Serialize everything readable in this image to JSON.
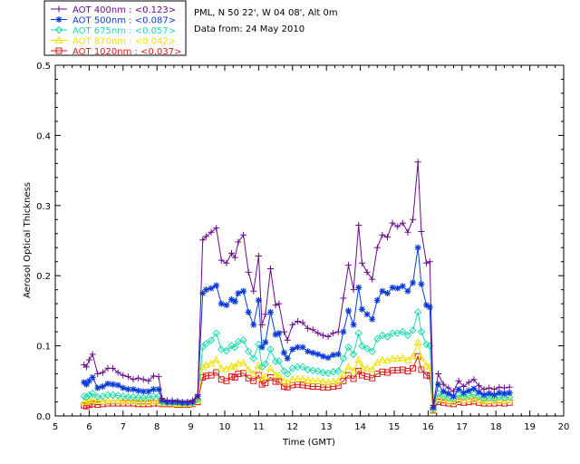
{
  "chart_data": {
    "type": "line",
    "info_lines": [
      "PML, N 50 22', W 04 08', Alt 0m",
      "Data from: 24 May 2010"
    ],
    "xlabel": "Time (GMT)",
    "ylabel": "Aerosol Optical Thickness",
    "xlim": [
      5,
      20
    ],
    "ylim": [
      0,
      0.5
    ],
    "x_ticks": [
      5,
      6,
      7,
      8,
      9,
      10,
      11,
      12,
      13,
      14,
      15,
      16,
      17,
      18,
      19,
      20
    ],
    "y_ticks": [
      "0.0",
      "0.1",
      "0.2",
      "0.3",
      "0.4",
      "0.5"
    ],
    "x_tick_values": [
      5,
      6,
      7,
      8,
      9,
      10,
      11,
      12,
      13,
      14,
      15,
      16,
      17,
      18,
      19,
      20
    ],
    "y_tick_values": [
      0,
      0.1,
      0.2,
      0.3,
      0.4,
      0.5
    ],
    "grid": false,
    "legend_position": "top-left, outside plot",
    "x": [
      5.85,
      5.92,
      6.0,
      6.1,
      6.25,
      6.4,
      6.55,
      6.7,
      6.85,
      7.0,
      7.15,
      7.3,
      7.45,
      7.6,
      7.75,
      7.9,
      8.05,
      8.15,
      8.3,
      8.45,
      8.6,
      8.75,
      8.9,
      9.05,
      9.2,
      9.35,
      9.45,
      9.6,
      9.75,
      9.9,
      10.05,
      10.2,
      10.3,
      10.4,
      10.55,
      10.7,
      10.85,
      11.0,
      11.1,
      11.2,
      11.35,
      11.5,
      11.6,
      11.75,
      11.85,
      12.0,
      12.15,
      12.3,
      12.45,
      12.6,
      12.75,
      12.9,
      13.05,
      13.2,
      13.35,
      13.5,
      13.65,
      13.8,
      13.95,
      14.05,
      14.2,
      14.35,
      14.5,
      14.65,
      14.8,
      14.95,
      15.1,
      15.25,
      15.4,
      15.55,
      15.7,
      15.8,
      15.95,
      16.05,
      16.15,
      16.3,
      16.45,
      16.6,
      16.75,
      16.9,
      17.05,
      17.2,
      17.35,
      17.5,
      17.65,
      17.8,
      17.95,
      18.1,
      18.25,
      18.4
    ],
    "series": [
      {
        "name": "AOT  400nm : <0.123>",
        "color": "#6a0a8a",
        "marker": "plus",
        "values": [
          0.073,
          0.07,
          0.08,
          0.088,
          0.06,
          0.062,
          0.068,
          0.068,
          0.062,
          0.058,
          0.056,
          0.052,
          0.054,
          0.052,
          0.05,
          0.057,
          0.056,
          0.025,
          0.022,
          0.022,
          0.021,
          0.02,
          0.02,
          0.022,
          0.03,
          0.251,
          0.256,
          0.262,
          0.268,
          0.222,
          0.218,
          0.232,
          0.226,
          0.248,
          0.258,
          0.205,
          0.178,
          0.228,
          0.13,
          0.145,
          0.21,
          0.158,
          0.16,
          0.12,
          0.108,
          0.13,
          0.135,
          0.133,
          0.125,
          0.123,
          0.118,
          0.115,
          0.113,
          0.118,
          0.12,
          0.168,
          0.215,
          0.18,
          0.272,
          0.218,
          0.205,
          0.195,
          0.24,
          0.258,
          0.255,
          0.275,
          0.27,
          0.275,
          0.262,
          0.28,
          0.362,
          0.263,
          0.218,
          0.22,
          0.015,
          0.06,
          0.045,
          0.04,
          0.035,
          0.05,
          0.042,
          0.048,
          0.052,
          0.043,
          0.038,
          0.04,
          0.038,
          0.041,
          0.04,
          0.041
        ]
      },
      {
        "name": "AOT  500nm : <0.087>",
        "color": "#0a3ad8",
        "marker": "asterisk",
        "values": [
          0.048,
          0.045,
          0.05,
          0.055,
          0.04,
          0.042,
          0.046,
          0.045,
          0.044,
          0.04,
          0.038,
          0.038,
          0.036,
          0.035,
          0.035,
          0.038,
          0.038,
          0.022,
          0.02,
          0.02,
          0.02,
          0.019,
          0.019,
          0.02,
          0.028,
          0.175,
          0.18,
          0.182,
          0.186,
          0.16,
          0.158,
          0.166,
          0.163,
          0.175,
          0.178,
          0.148,
          0.13,
          0.165,
          0.098,
          0.105,
          0.148,
          0.116,
          0.118,
          0.09,
          0.082,
          0.095,
          0.098,
          0.098,
          0.092,
          0.09,
          0.088,
          0.085,
          0.083,
          0.087,
          0.088,
          0.12,
          0.15,
          0.13,
          0.183,
          0.152,
          0.145,
          0.138,
          0.165,
          0.178,
          0.175,
          0.183,
          0.182,
          0.185,
          0.178,
          0.19,
          0.24,
          0.188,
          0.158,
          0.155,
          0.012,
          0.045,
          0.035,
          0.032,
          0.028,
          0.038,
          0.033,
          0.036,
          0.039,
          0.034,
          0.03,
          0.032,
          0.03,
          0.033,
          0.032,
          0.033
        ]
      },
      {
        "name": "AOT  675nm : <0.057>",
        "color": "#1fd8b0",
        "marker": "diamond",
        "values": [
          0.028,
          0.027,
          0.03,
          0.032,
          0.027,
          0.028,
          0.03,
          0.03,
          0.029,
          0.028,
          0.027,
          0.027,
          0.026,
          0.026,
          0.026,
          0.028,
          0.028,
          0.02,
          0.019,
          0.019,
          0.019,
          0.018,
          0.018,
          0.019,
          0.024,
          0.098,
          0.103,
          0.108,
          0.118,
          0.095,
          0.093,
          0.1,
          0.098,
          0.106,
          0.108,
          0.092,
          0.082,
          0.102,
          0.07,
          0.074,
          0.095,
          0.078,
          0.078,
          0.064,
          0.06,
          0.068,
          0.07,
          0.07,
          0.066,
          0.065,
          0.064,
          0.062,
          0.061,
          0.063,
          0.064,
          0.082,
          0.098,
          0.088,
          0.118,
          0.1,
          0.096,
          0.092,
          0.11,
          0.115,
          0.113,
          0.118,
          0.118,
          0.12,
          0.115,
          0.122,
          0.148,
          0.12,
          0.102,
          0.1,
          0.01,
          0.032,
          0.028,
          0.026,
          0.024,
          0.03,
          0.027,
          0.029,
          0.031,
          0.028,
          0.025,
          0.026,
          0.025,
          0.027,
          0.026,
          0.027
        ]
      },
      {
        "name": "AOT  870nm : <0.042>",
        "color": "#f0e000",
        "marker": "triangle",
        "values": [
          0.02,
          0.02,
          0.022,
          0.023,
          0.021,
          0.021,
          0.022,
          0.022,
          0.022,
          0.021,
          0.021,
          0.021,
          0.02,
          0.02,
          0.02,
          0.021,
          0.021,
          0.018,
          0.018,
          0.018,
          0.017,
          0.017,
          0.017,
          0.018,
          0.022,
          0.07,
          0.073,
          0.075,
          0.08,
          0.068,
          0.067,
          0.071,
          0.07,
          0.075,
          0.076,
          0.066,
          0.06,
          0.072,
          0.054,
          0.056,
          0.068,
          0.058,
          0.058,
          0.05,
          0.048,
          0.052,
          0.053,
          0.053,
          0.051,
          0.05,
          0.05,
          0.049,
          0.048,
          0.049,
          0.05,
          0.06,
          0.07,
          0.064,
          0.08,
          0.07,
          0.068,
          0.066,
          0.076,
          0.08,
          0.079,
          0.082,
          0.082,
          0.083,
          0.08,
          0.085,
          0.105,
          0.083,
          0.072,
          0.07,
          0.009,
          0.026,
          0.024,
          0.022,
          0.02,
          0.025,
          0.023,
          0.024,
          0.026,
          0.023,
          0.021,
          0.022,
          0.021,
          0.023,
          0.022,
          0.023
        ]
      },
      {
        "name": "AOT 1020nm : <0.037>",
        "color": "#d81818",
        "marker": "square",
        "values": [
          0.015,
          0.014,
          0.016,
          0.017,
          0.016,
          0.017,
          0.018,
          0.018,
          0.018,
          0.018,
          0.018,
          0.018,
          0.017,
          0.017,
          0.017,
          0.018,
          0.018,
          0.017,
          0.017,
          0.017,
          0.016,
          0.016,
          0.016,
          0.017,
          0.02,
          0.055,
          0.057,
          0.058,
          0.062,
          0.052,
          0.05,
          0.056,
          0.055,
          0.06,
          0.061,
          0.054,
          0.05,
          0.058,
          0.045,
          0.047,
          0.055,
          0.049,
          0.049,
          0.042,
          0.041,
          0.044,
          0.045,
          0.044,
          0.043,
          0.042,
          0.042,
          0.041,
          0.041,
          0.042,
          0.043,
          0.05,
          0.058,
          0.053,
          0.064,
          0.058,
          0.056,
          0.054,
          0.06,
          0.063,
          0.062,
          0.065,
          0.065,
          0.066,
          0.064,
          0.068,
          0.085,
          0.066,
          0.058,
          0.057,
          0.008,
          0.02,
          0.019,
          0.018,
          0.017,
          0.02,
          0.019,
          0.02,
          0.021,
          0.019,
          0.018,
          0.018,
          0.018,
          0.019,
          0.018,
          0.019
        ]
      }
    ]
  }
}
